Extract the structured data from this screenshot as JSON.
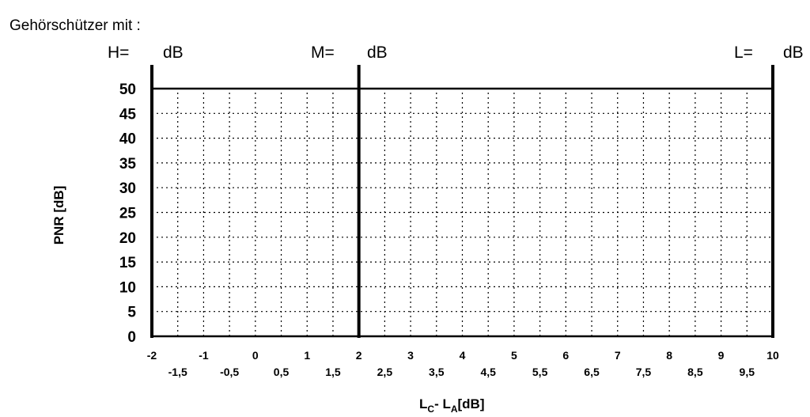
{
  "header": {
    "title": "Gehörschützer mit :",
    "h_label": "H=",
    "m_label": "M=",
    "l_label": "L=",
    "unit_label": "dB"
  },
  "chart_data": {
    "type": "line",
    "title": "",
    "ylabel": "PNR [dB]",
    "xlabel_main": "L",
    "xlabel_sub1": "C",
    "xlabel_sep": "- L",
    "xlabel_sub2": "A",
    "xlabel_unit": "[dB]",
    "xlim": [
      -2,
      10
    ],
    "ylim": [
      0,
      50
    ],
    "x_ticks_major": [
      "-2",
      "-1",
      "0",
      "1",
      "2",
      "3",
      "4",
      "5",
      "6",
      "7",
      "8",
      "9",
      "10"
    ],
    "x_ticks_minor": [
      "-1,5",
      "-0,5",
      "0,5",
      "1,5",
      "2,5",
      "3,5",
      "4,5",
      "5,5",
      "6,5",
      "7,5",
      "8,5",
      "9,5"
    ],
    "y_ticks": [
      "0",
      "5",
      "10",
      "15",
      "20",
      "25",
      "30",
      "35",
      "40",
      "45",
      "50"
    ],
    "grid": true,
    "series": [
      {
        "x": [
          -2,
          -2,
          2,
          2
        ],
        "y": [
          0,
          50,
          50,
          0
        ]
      },
      {
        "x": [
          2,
          2,
          10,
          10
        ],
        "y": [
          0,
          50,
          50,
          0
        ]
      }
    ]
  }
}
